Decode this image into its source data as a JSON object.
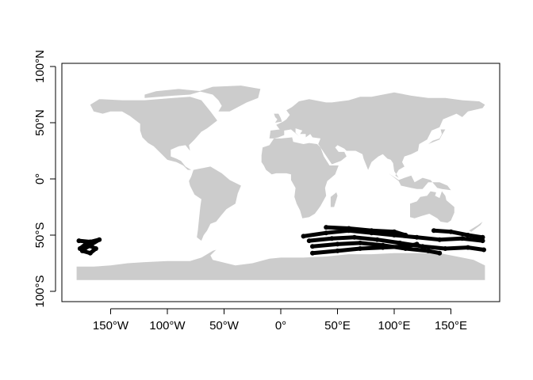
{
  "chart_data": {
    "type": "scatter",
    "title": "",
    "xlabel": "",
    "ylabel": "",
    "xlim": [
      -180,
      180
    ],
    "ylim": [
      -100,
      100
    ],
    "x_ticks": [
      {
        "value": -150,
        "label": "150°W"
      },
      {
        "value": -100,
        "label": "100°W"
      },
      {
        "value": -50,
        "label": "50°W"
      },
      {
        "value": 0,
        "label": "0°"
      },
      {
        "value": 50,
        "label": "50°E"
      },
      {
        "value": 100,
        "label": "100°E"
      },
      {
        "value": 150,
        "label": "150°E"
      }
    ],
    "y_ticks": [
      {
        "value": 100,
        "label": "100°N"
      },
      {
        "value": 50,
        "label": "50°N"
      },
      {
        "value": 0,
        "label": "0°"
      },
      {
        "value": -50,
        "label": "50°S"
      },
      {
        "value": -100,
        "label": "100°S"
      }
    ],
    "basemap_color": "#cccccc",
    "track_color": "#000000",
    "series": [
      {
        "values": [
          {
            "x": -178,
            "y": -55
          },
          {
            "x": -168,
            "y": -56
          },
          {
            "x": -160,
            "y": -54
          },
          {
            "x": -170,
            "y": -60
          },
          {
            "x": -175,
            "y": -64
          },
          {
            "x": -168,
            "y": -66
          },
          {
            "x": -163,
            "y": -62
          },
          {
            "x": -172,
            "y": -58
          },
          {
            "x": -177,
            "y": -62
          }
        ]
      },
      {
        "values": [
          {
            "x": 20,
            "y": -51
          },
          {
            "x": 40,
            "y": -48
          },
          {
            "x": 60,
            "y": -46
          },
          {
            "x": 80,
            "y": -48
          },
          {
            "x": 100,
            "y": -50
          },
          {
            "x": 120,
            "y": -52
          },
          {
            "x": 140,
            "y": -54
          },
          {
            "x": 160,
            "y": -53
          },
          {
            "x": 178,
            "y": -55
          }
        ]
      },
      {
        "values": [
          {
            "x": 25,
            "y": -55
          },
          {
            "x": 45,
            "y": -53
          },
          {
            "x": 65,
            "y": -52
          },
          {
            "x": 85,
            "y": -54
          },
          {
            "x": 105,
            "y": -57
          },
          {
            "x": 125,
            "y": -60
          },
          {
            "x": 145,
            "y": -62
          },
          {
            "x": 165,
            "y": -61
          },
          {
            "x": 179,
            "y": -63
          }
        ]
      },
      {
        "values": [
          {
            "x": 28,
            "y": -60
          },
          {
            "x": 50,
            "y": -58
          },
          {
            "x": 70,
            "y": -57
          },
          {
            "x": 90,
            "y": -59
          },
          {
            "x": 110,
            "y": -62
          },
          {
            "x": 130,
            "y": -64
          },
          {
            "x": 140,
            "y": -66
          }
        ]
      },
      {
        "values": [
          {
            "x": 28,
            "y": -66
          },
          {
            "x": 50,
            "y": -64
          },
          {
            "x": 70,
            "y": -62
          },
          {
            "x": 90,
            "y": -61
          },
          {
            "x": 110,
            "y": -60
          },
          {
            "x": 120,
            "y": -58
          }
        ]
      },
      {
        "values": [
          {
            "x": 40,
            "y": -43
          },
          {
            "x": 60,
            "y": -44
          },
          {
            "x": 80,
            "y": -46
          },
          {
            "x": 100,
            "y": -47
          },
          {
            "x": 110,
            "y": -50
          }
        ]
      },
      {
        "values": [
          {
            "x": 135,
            "y": -46
          },
          {
            "x": 150,
            "y": -47
          },
          {
            "x": 165,
            "y": -50
          },
          {
            "x": 178,
            "y": -52
          }
        ]
      }
    ]
  }
}
